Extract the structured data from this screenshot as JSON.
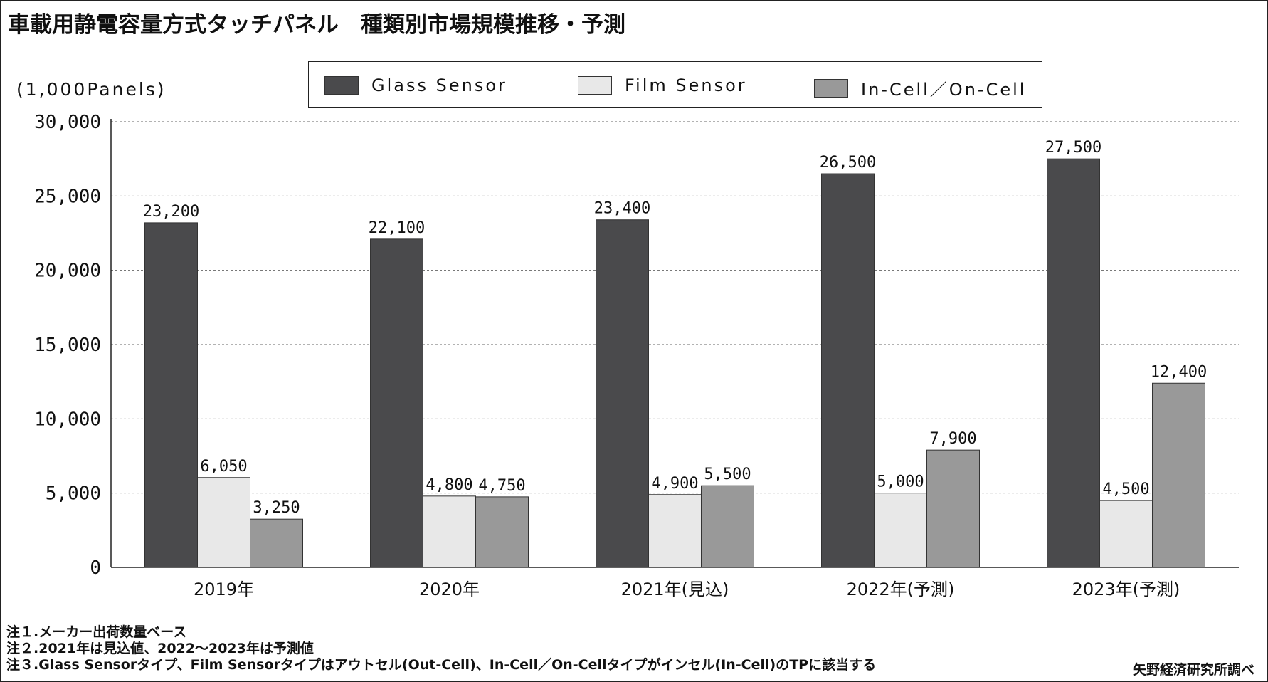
{
  "title": "車載用静電容量方式タッチパネル　種類別市場規模推移・予測",
  "unit_label": "(1,000Panels)",
  "notes": [
    "注１.メーカー出荷数量ベース",
    "注２.2021年は見込値、2022～2023年は予測値",
    "注３.Glass Sensorタイプ、Film Sensorタイプはアウトセル(Out-Cell)、In-Cell／On-Cellタイプがインセル(In-Cell)のTPに該当する"
  ],
  "source": "矢野経済研究所調べ",
  "colors": {
    "glass": "#4a4a4c",
    "film": "#e8e8e8",
    "incell": "#999999",
    "grid": "#666666"
  },
  "chart_data": {
    "type": "bar",
    "title": "車載用静電容量方式タッチパネル　種類別市場規模推移・予測",
    "ylabel": "(1,000Panels)",
    "xlabel": "",
    "ylim": [
      0,
      30000
    ],
    "yticks": [
      0,
      5000,
      10000,
      15000,
      20000,
      25000,
      30000
    ],
    "ytick_labels": [
      "0",
      "5,000",
      "10,000",
      "15,000",
      "20,000",
      "25,000",
      "30,000"
    ],
    "grid": true,
    "legend_position": "top",
    "categories": [
      "2019年",
      "2020年",
      "2021年(見込)",
      "2022年(予測)",
      "2023年(予測)"
    ],
    "series": [
      {
        "name": "Glass Sensor",
        "values": [
          23200,
          22100,
          23400,
          26500,
          27500
        ],
        "labels": [
          "23,200",
          "22,100",
          "23,400",
          "26,500",
          "27,500"
        ]
      },
      {
        "name": "Film Sensor",
        "values": [
          6050,
          4800,
          4900,
          5000,
          4500
        ],
        "labels": [
          "6,050",
          "4,800",
          "4,900",
          "5,000",
          "4,500"
        ]
      },
      {
        "name": "In-Cell／On-Cell",
        "values": [
          3250,
          4750,
          5500,
          7900,
          12400
        ],
        "labels": [
          "3,250",
          "4,750",
          "5,500",
          "7,900",
          "12,400"
        ]
      }
    ]
  }
}
